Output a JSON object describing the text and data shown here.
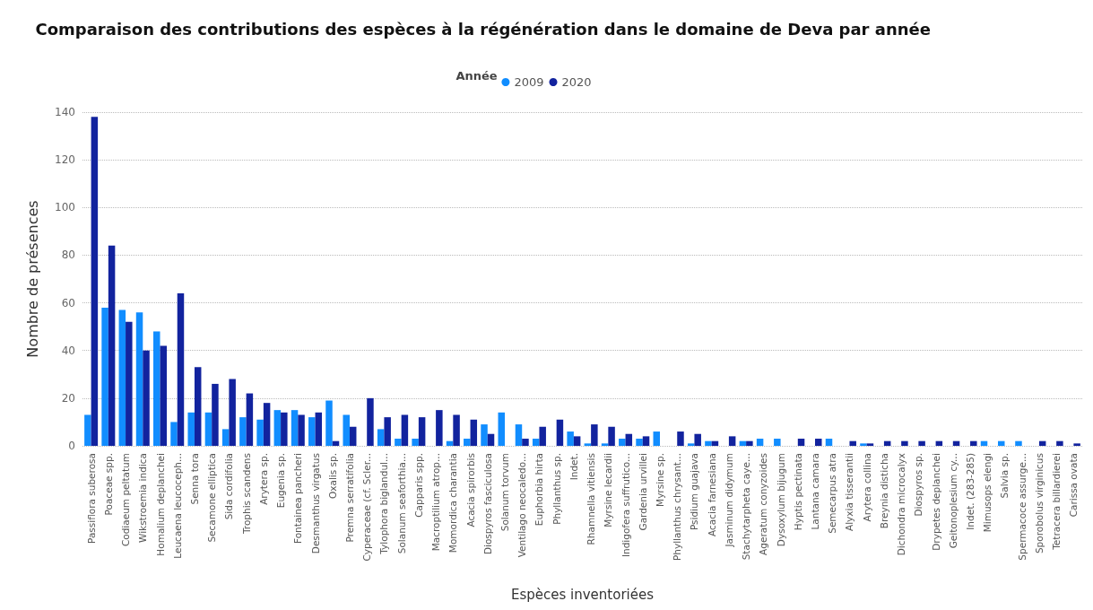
{
  "chart_data": {
    "type": "bar",
    "title": "Comparaison des contributions des espèces à la régénération dans le domaine de Deva par année",
    "legend_title": "Année",
    "xlabel": "Espèces inventoriées",
    "ylabel": "Nombre de présences",
    "categories": [
      "Passiflora suberosa",
      "Poaceae spp.",
      "Codiaeum peltatum",
      "Wikstroemia indica",
      "Homalium deplanchei",
      "Leucaena leucoceph...",
      "Senna tora",
      "Secamone elliptica",
      "Sida cordifolia",
      "Trophis scandens",
      "Arytera sp.",
      "Eugenia sp.",
      "Fontainea pancheri",
      "Desmanthus virgatus",
      "Oxalis sp.",
      "Premna serratifolia",
      "Cyperaceae (cf. Scler...",
      "Tylophora biglandul...",
      "Solanum seaforthia...",
      "Capparis spp.",
      "Macroptilium atrop...",
      "Momordica charantia",
      "Acacia spirorbis",
      "Diospyros fasciculosa",
      "Solanum torvum",
      "Ventilago neocaledo...",
      "Euphorbia hirta",
      "Phyllanthus sp.",
      "Indet.",
      "Rhamnella vitiensis",
      "Myrsine lecardii",
      "Indigofera suffrutico...",
      "Gardenia urvillei",
      "Myrsine sp.",
      "Phyllanthus chrysant...",
      "Psidium guajava",
      "Acacia farnesiana",
      "Jasminum didymum",
      "Stachytarpheta caye...",
      "Ageratum conyzoides",
      "Dysoxylum bijugum",
      "Hyptis pectinata",
      "Lantana camara",
      "Semecarpus atra",
      "Alyxia tisserantii",
      "Arytera collina",
      "Breynia disticha",
      "Dichondra microcalyx",
      "Diospyros sp.",
      "Drypetes deplanchei",
      "Geitonoplesium cy...",
      "Indet. (283-285)",
      "Mimusops elengi",
      "Salvia sp.",
      "Spermacoce assurge...",
      "Sporobolus virginicus",
      "Tetracera billardierei",
      "Carissa ovata"
    ],
    "series": [
      {
        "name": "2009",
        "color": "#118dff",
        "values": [
          13,
          58,
          57,
          56,
          48,
          10,
          14,
          14,
          7,
          12,
          11,
          15,
          15,
          12,
          19,
          13,
          null,
          7,
          3,
          3,
          null,
          2,
          3,
          9,
          14,
          9,
          3,
          null,
          6,
          1,
          1,
          3,
          3,
          6,
          null,
          1,
          2,
          null,
          2,
          3,
          3,
          null,
          null,
          3,
          null,
          1,
          null,
          null,
          null,
          null,
          null,
          null,
          2,
          2,
          2,
          null,
          null,
          null
        ]
      },
      {
        "name": "2020",
        "color": "#12239e",
        "values": [
          138,
          84,
          52,
          40,
          42,
          64,
          33,
          26,
          28,
          22,
          18,
          14,
          13,
          14,
          2,
          8,
          20,
          12,
          13,
          12,
          15,
          13,
          11,
          5,
          null,
          3,
          8,
          11,
          4,
          9,
          8,
          5,
          4,
          null,
          6,
          5,
          2,
          4,
          2,
          null,
          null,
          3,
          3,
          null,
          2,
          1,
          2,
          2,
          2,
          2,
          2,
          2,
          null,
          null,
          null,
          2,
          2,
          1
        ]
      }
    ],
    "ylim": [
      0,
      140
    ],
    "yticks": [
      0,
      20,
      40,
      60,
      80,
      100,
      120,
      140
    ],
    "grid": "y",
    "legend": "top"
  }
}
